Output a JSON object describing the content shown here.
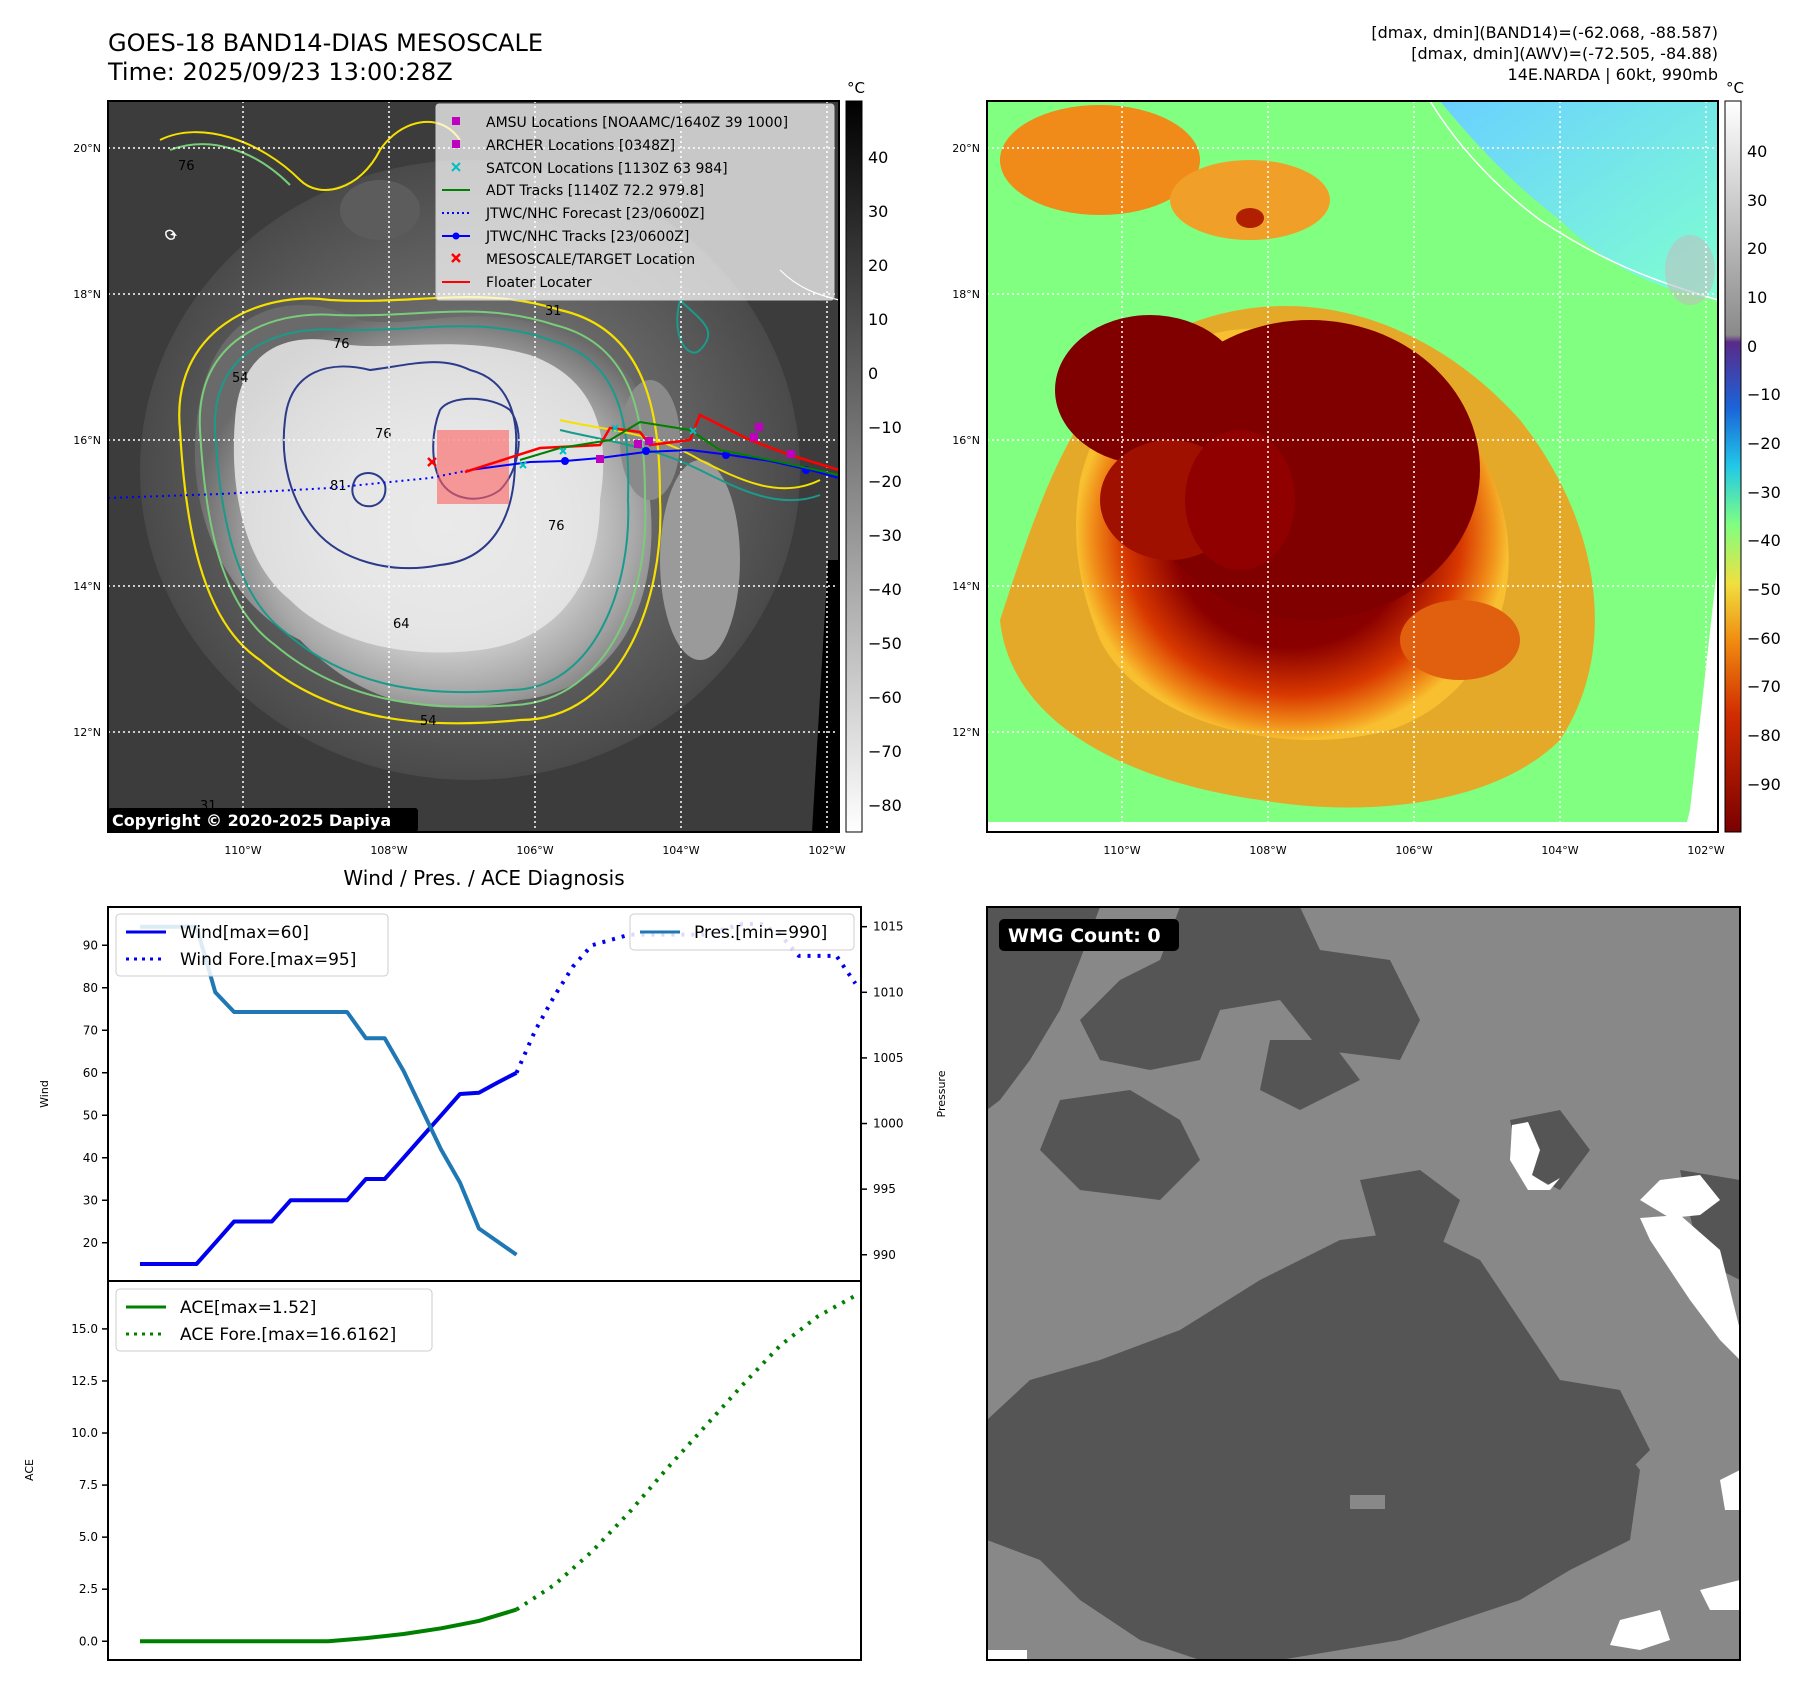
{
  "header": {
    "title_line1": "GOES-18 BAND14-DIAS MESOSCALE",
    "title_line2": "Time: 2025/09/23 13:00:28Z",
    "right_line1": "[dmax, dmin](BAND14)=(-62.068, -88.587)",
    "right_line2": "[dmax, dmin](AWV)=(-72.505, -84.88)",
    "right_line3": "14E.NARDA | 60kt, 990mb"
  },
  "map": {
    "lat_labels": [
      "20°N",
      "18°N",
      "16°N",
      "14°N",
      "12°N"
    ],
    "lon_labels": [
      "110°W",
      "108°W",
      "106°W",
      "104°W",
      "102°W"
    ],
    "copyright": "Copyright © 2020-2025 Dapiya",
    "contour_labels": [
      "54",
      "31",
      "76",
      "81",
      "76",
      "76",
      "64",
      "54",
      "76",
      "31"
    ],
    "legend": [
      {
        "label": "AMSU Locations [NOAAMC/1640Z 39 1000]",
        "marker": "square",
        "color": "#c000c0"
      },
      {
        "label": "ARCHER Locations [0348Z]",
        "marker": "square",
        "color": "#c000c0"
      },
      {
        "label": "SATCON Locations [1130Z 63 984]",
        "marker": "x",
        "color": "#00c0c0"
      },
      {
        "label": "ADT Tracks [1140Z 72.2 979.8]",
        "marker": "line",
        "color": "#008000"
      },
      {
        "label": "JTWC/NHC Forecast [23/0600Z]",
        "marker": "dotted",
        "color": "#0000ff"
      },
      {
        "label": "JTWC/NHC Tracks [23/0600Z]",
        "marker": "line-dot",
        "color": "#0000ff"
      },
      {
        "label": "MESOSCALE/TARGET Location",
        "marker": "x",
        "color": "#ff0000"
      },
      {
        "label": "Floater Locater",
        "marker": "line",
        "color": "#ff0000"
      }
    ]
  },
  "colorbar_left": {
    "unit": "°C",
    "ticks": [
      "40",
      "30",
      "20",
      "10",
      "0",
      "−10",
      "−20",
      "−30",
      "−40",
      "−50",
      "−60",
      "−70",
      "−80"
    ]
  },
  "colorbar_right": {
    "unit": "°C",
    "ticks": [
      "40",
      "30",
      "20",
      "10",
      "0",
      "−10",
      "−20",
      "−30",
      "−40",
      "−50",
      "−60",
      "−70",
      "−80",
      "−90"
    ]
  },
  "wmg": {
    "label": "WMG Count: 0"
  },
  "chart_data": [
    {
      "type": "line",
      "title": "Wind / Pres. / ACE Diagnosis",
      "ylabel": "Wind",
      "ylabel_right": "Pressure",
      "ylim": [
        11,
        99
      ],
      "ylim_right": [
        988,
        1016.5
      ],
      "xlim": [
        -1.7,
        38.3
      ],
      "yticks": [
        20,
        30,
        40,
        50,
        60,
        70,
        80,
        90
      ],
      "yticks_right": [
        990,
        995,
        1000,
        1005,
        1010,
        1015
      ],
      "legend_left": [
        "Wind[max=60]",
        "Wind Fore.[max=95]"
      ],
      "legend_right": [
        "Pres.[min=990]"
      ],
      "series": [
        {
          "name": "Wind[max=60]",
          "axis": "left",
          "style": "solid",
          "color": "#0000ee",
          "x": [
            0,
            1,
            2,
            3,
            4,
            5,
            6,
            7,
            8,
            9,
            10,
            11,
            12,
            13,
            14,
            15,
            16,
            17,
            18,
            19,
            20
          ],
          "values": [
            15,
            15,
            15,
            15,
            20,
            25,
            25,
            25,
            30,
            30,
            30,
            30,
            35,
            35,
            40,
            45,
            50,
            55,
            55.3,
            57.7,
            60
          ]
        },
        {
          "name": "Wind Fore.[max=95]",
          "axis": "left",
          "style": "dotted",
          "color": "#0000ee",
          "x": [
            20,
            21,
            22,
            23,
            24,
            26,
            28,
            30,
            32,
            33,
            34,
            35,
            36,
            37,
            38
          ],
          "values": [
            60,
            70,
            78,
            85,
            90,
            92.5,
            92.5,
            92.5,
            95,
            95,
            92.5,
            87.5,
            87.5,
            87.5,
            81
          ]
        },
        {
          "name": "Pres.[min=990]",
          "axis": "right",
          "style": "solid",
          "color": "#1f77b4",
          "x": [
            0,
            1,
            2,
            3,
            4,
            5,
            6,
            7,
            8,
            9,
            10,
            11,
            12,
            13,
            14,
            15,
            16,
            17,
            18,
            19,
            20
          ],
          "values": [
            1015,
            1015,
            1015,
            1015,
            1010,
            1008.5,
            1008.5,
            1008.5,
            1008.5,
            1008.5,
            1008.5,
            1008.5,
            1006.5,
            1006.5,
            1004,
            1001,
            998,
            995.5,
            992,
            991,
            990
          ]
        }
      ]
    },
    {
      "type": "line",
      "ylabel": "ACE",
      "ylim": [
        -0.9,
        17.3
      ],
      "xlim": [
        -1.7,
        38.3
      ],
      "yticks": [
        "0.0",
        "2.5",
        "5.0",
        "7.5",
        "10.0",
        "12.5",
        "15.0"
      ],
      "legend": [
        "ACE[max=1.52]",
        "ACE Fore.[max=16.6162]"
      ],
      "series": [
        {
          "name": "ACE[max=1.52]",
          "style": "solid",
          "color": "#008000",
          "x": [
            0,
            2,
            4,
            6,
            8,
            10,
            12,
            14,
            16,
            18,
            20
          ],
          "values": [
            0,
            0,
            0,
            0,
            0,
            0,
            0.15,
            0.35,
            0.62,
            0.98,
            1.52
          ]
        },
        {
          "name": "ACE Fore.[max=16.6162]",
          "style": "dotted",
          "color": "#008000",
          "x": [
            20,
            22,
            24,
            26,
            28,
            30,
            32,
            34,
            36,
            38
          ],
          "values": [
            1.52,
            2.7,
            4.3,
            6.2,
            8.3,
            10.3,
            12.3,
            14.2,
            15.6,
            16.6
          ]
        }
      ]
    }
  ]
}
